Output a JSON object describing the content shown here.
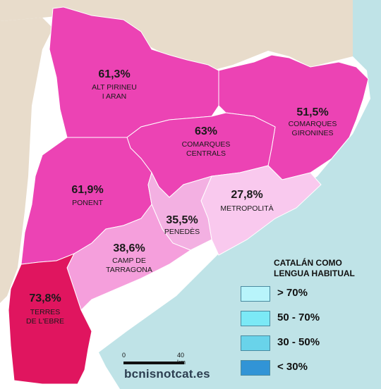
{
  "regions": [
    {
      "key": "alt_pirineu",
      "pct": "61,3%",
      "name": [
        "ALT PIRINEU",
        "I ARAN"
      ],
      "value": 61.3
    },
    {
      "key": "comarques_centrals",
      "pct": "63%",
      "name": [
        "COMARQUES",
        "CENTRALS"
      ],
      "value": 63
    },
    {
      "key": "comarques_gironines",
      "pct": "51,5%",
      "name": [
        "COMARQUES",
        "GIRONINES"
      ],
      "value": 51.5
    },
    {
      "key": "ponent",
      "pct": "61,9%",
      "name": [
        "PONENT"
      ],
      "value": 61.9
    },
    {
      "key": "metropolita",
      "pct": "27,8%",
      "name": [
        "METROPOLITÀ"
      ],
      "value": 27.8
    },
    {
      "key": "penedes",
      "pct": "35,5%",
      "name": [
        "PENEDÈS"
      ],
      "value": 35.5
    },
    {
      "key": "camp_tarragona",
      "pct": "38,6%",
      "name": [
        "CAMP DE",
        "TARRAGONA"
      ],
      "value": 38.6
    },
    {
      "key": "terres_ebre",
      "pct": "73,8%",
      "name": [
        "TERRES",
        "DE L'EBRE"
      ],
      "value": 73.8
    }
  ],
  "colors": {
    "terres_ebre": "#e0155f",
    "high": "#ec43b4",
    "camp": "#f59fdc",
    "penedes": "#f3b0e2",
    "metro": "#f9c9ee",
    "neighbor": "#e8dccb",
    "sea": "#bfe3e7"
  },
  "legend": {
    "title": [
      "CATALÁN COMO",
      "LENGUA HABITUAL"
    ],
    "items": [
      {
        "label": "> 70%",
        "color": "#b8f4fb"
      },
      {
        "label": "50 - 70%",
        "color": "#7be9f6"
      },
      {
        "label": "30 - 50%",
        "color": "#69d3ea"
      },
      {
        "label": "< 30%",
        "color": "#3194d6"
      }
    ]
  },
  "scale": {
    "zero": "0",
    "max": "40 km"
  },
  "source": "bcnisnotcat.es"
}
